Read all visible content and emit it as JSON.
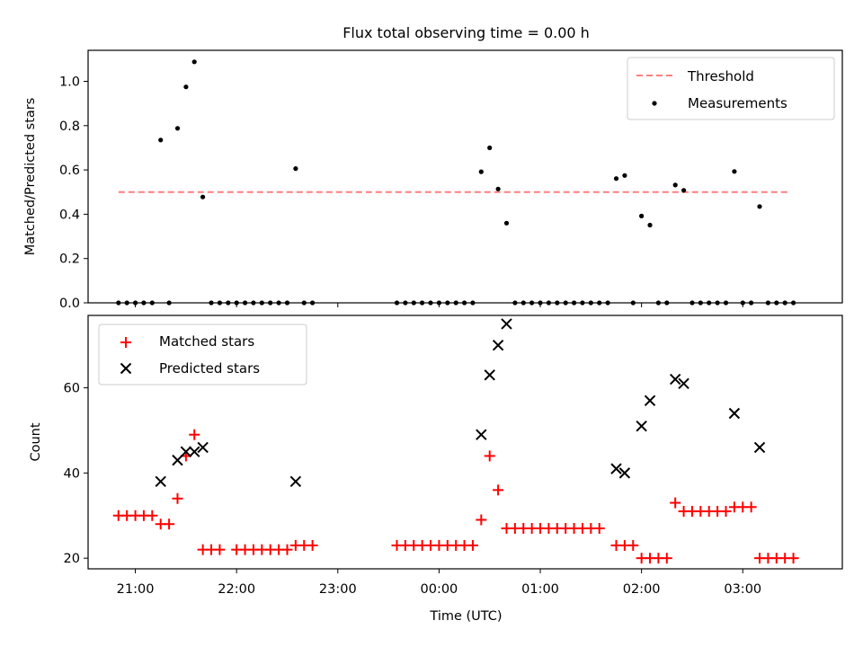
{
  "chart_data": [
    {
      "type": "scatter",
      "title": "Flux total observing time = 0.00 h",
      "ylabel": "Matched/Predicted stars",
      "xlabel": "",
      "ylim": [
        0,
        1.14
      ],
      "yticks": [
        "0.0",
        "0.2",
        "0.4",
        "0.6",
        "0.8",
        "1.0"
      ],
      "legend": {
        "position": "upper right",
        "entries": [
          {
            "label": "Threshold",
            "marker": "dashed-line",
            "color": "#ff7f7f"
          },
          {
            "label": "Measurements",
            "marker": "dot",
            "color": "#000000"
          }
        ]
      },
      "threshold": {
        "y": 0.5,
        "x_start": "20:50",
        "x_end": "03:28",
        "color": "#ff7f7f"
      },
      "series": [
        {
          "name": "Measurements",
          "color": "#000000",
          "points": [
            [
              "20:50",
              0
            ],
            [
              "20:55",
              0
            ],
            [
              "21:00",
              0
            ],
            [
              "21:05",
              0
            ],
            [
              "21:10",
              0
            ],
            [
              "21:15",
              0.735
            ],
            [
              "21:20",
              0
            ],
            [
              "21:25",
              0.788
            ],
            [
              "21:30",
              0.975
            ],
            [
              "21:35",
              1.088
            ],
            [
              "21:40",
              0.478
            ],
            [
              "21:45",
              0
            ],
            [
              "21:50",
              0
            ],
            [
              "21:55",
              0
            ],
            [
              "22:00",
              0
            ],
            [
              "22:05",
              0
            ],
            [
              "22:10",
              0
            ],
            [
              "22:15",
              0
            ],
            [
              "22:20",
              0
            ],
            [
              "22:25",
              0
            ],
            [
              "22:30",
              0
            ],
            [
              "22:35",
              0.606
            ],
            [
              "22:40",
              0
            ],
            [
              "22:45",
              0
            ],
            [
              "23:35",
              0
            ],
            [
              "23:40",
              0
            ],
            [
              "23:45",
              0
            ],
            [
              "23:50",
              0
            ],
            [
              "23:55",
              0
            ],
            [
              "00:00",
              0
            ],
            [
              "00:05",
              0
            ],
            [
              "00:10",
              0
            ],
            [
              "00:15",
              0
            ],
            [
              "00:20",
              0
            ],
            [
              "00:25",
              0.592
            ],
            [
              "00:30",
              0.7
            ],
            [
              "00:35",
              0.514
            ],
            [
              "00:40",
              0.36
            ],
            [
              "00:45",
              0
            ],
            [
              "00:50",
              0
            ],
            [
              "00:55",
              0
            ],
            [
              "01:00",
              0
            ],
            [
              "01:05",
              0
            ],
            [
              "01:10",
              0
            ],
            [
              "01:15",
              0
            ],
            [
              "01:20",
              0
            ],
            [
              "01:25",
              0
            ],
            [
              "01:30",
              0
            ],
            [
              "01:35",
              0
            ],
            [
              "01:40",
              0
            ],
            [
              "01:45",
              0.561
            ],
            [
              "01:50",
              0.575
            ],
            [
              "01:55",
              0
            ],
            [
              "02:00",
              0.392
            ],
            [
              "02:05",
              0.351
            ],
            [
              "02:10",
              0
            ],
            [
              "02:15",
              0
            ],
            [
              "02:20",
              0.532
            ],
            [
              "02:25",
              0.508
            ],
            [
              "02:30",
              0
            ],
            [
              "02:35",
              0
            ],
            [
              "02:40",
              0
            ],
            [
              "02:45",
              0
            ],
            [
              "02:50",
              0
            ],
            [
              "02:55",
              0.593
            ],
            [
              "03:00",
              0
            ],
            [
              "03:05",
              0
            ],
            [
              "03:10",
              0.435
            ],
            [
              "03:15",
              0
            ],
            [
              "03:20",
              0
            ],
            [
              "03:25",
              0
            ],
            [
              "03:30",
              0
            ]
          ]
        }
      ]
    },
    {
      "type": "scatter",
      "title": "",
      "ylabel": "Count",
      "xlabel": "Time (UTC)",
      "ylim": [
        17.5,
        77
      ],
      "yticks": [
        "20",
        "40",
        "60"
      ],
      "xticks": [
        "21:00",
        "22:00",
        "23:00",
        "00:00",
        "01:00",
        "02:00",
        "03:00"
      ],
      "xlim": [
        "20:32",
        "03:59"
      ],
      "legend": {
        "position": "upper left",
        "entries": [
          {
            "label": "Matched stars",
            "marker": "plus",
            "color": "#ff0000"
          },
          {
            "label": "Predicted stars",
            "marker": "x",
            "color": "#000000"
          }
        ]
      },
      "series": [
        {
          "name": "Matched stars",
          "color": "#ff0000",
          "points": [
            [
              "20:50",
              30
            ],
            [
              "20:55",
              30
            ],
            [
              "21:00",
              30
            ],
            [
              "21:05",
              30
            ],
            [
              "21:10",
              30
            ],
            [
              "21:15",
              28
            ],
            [
              "21:20",
              28
            ],
            [
              "21:25",
              34
            ],
            [
              "21:30",
              44
            ],
            [
              "21:35",
              49
            ],
            [
              "21:40",
              22
            ],
            [
              "21:45",
              22
            ],
            [
              "21:50",
              22
            ],
            [
              "22:00",
              22
            ],
            [
              "22:05",
              22
            ],
            [
              "22:10",
              22
            ],
            [
              "22:15",
              22
            ],
            [
              "22:20",
              22
            ],
            [
              "22:25",
              22
            ],
            [
              "22:30",
              22
            ],
            [
              "22:35",
              23
            ],
            [
              "22:40",
              23
            ],
            [
              "22:45",
              23
            ],
            [
              "23:35",
              23
            ],
            [
              "23:40",
              23
            ],
            [
              "23:45",
              23
            ],
            [
              "23:50",
              23
            ],
            [
              "23:55",
              23
            ],
            [
              "00:00",
              23
            ],
            [
              "00:05",
              23
            ],
            [
              "00:10",
              23
            ],
            [
              "00:15",
              23
            ],
            [
              "00:20",
              23
            ],
            [
              "00:25",
              29
            ],
            [
              "00:30",
              44
            ],
            [
              "00:35",
              36
            ],
            [
              "00:40",
              27
            ],
            [
              "00:45",
              27
            ],
            [
              "00:50",
              27
            ],
            [
              "00:55",
              27
            ],
            [
              "01:00",
              27
            ],
            [
              "01:05",
              27
            ],
            [
              "01:10",
              27
            ],
            [
              "01:15",
              27
            ],
            [
              "01:20",
              27
            ],
            [
              "01:25",
              27
            ],
            [
              "01:30",
              27
            ],
            [
              "01:35",
              27
            ],
            [
              "01:45",
              23
            ],
            [
              "01:50",
              23
            ],
            [
              "01:55",
              23
            ],
            [
              "02:00",
              20
            ],
            [
              "02:05",
              20
            ],
            [
              "02:10",
              20
            ],
            [
              "02:15",
              20
            ],
            [
              "02:20",
              33
            ],
            [
              "02:25",
              31
            ],
            [
              "02:30",
              31
            ],
            [
              "02:35",
              31
            ],
            [
              "02:40",
              31
            ],
            [
              "02:45",
              31
            ],
            [
              "02:50",
              31
            ],
            [
              "02:55",
              32
            ],
            [
              "03:00",
              32
            ],
            [
              "03:05",
              32
            ],
            [
              "03:10",
              20
            ],
            [
              "03:15",
              20
            ],
            [
              "03:20",
              20
            ],
            [
              "03:25",
              20
            ],
            [
              "03:30",
              20
            ]
          ]
        },
        {
          "name": "Predicted stars",
          "color": "#000000",
          "points": [
            [
              "21:15",
              38
            ],
            [
              "21:25",
              43
            ],
            [
              "21:30",
              45
            ],
            [
              "21:35",
              45
            ],
            [
              "21:40",
              46
            ],
            [
              "22:35",
              38
            ],
            [
              "00:25",
              49
            ],
            [
              "00:30",
              63
            ],
            [
              "00:35",
              70
            ],
            [
              "00:40",
              75
            ],
            [
              "01:45",
              41
            ],
            [
              "01:50",
              40
            ],
            [
              "02:00",
              51
            ],
            [
              "02:05",
              57
            ],
            [
              "02:20",
              62
            ],
            [
              "02:25",
              61
            ],
            [
              "02:55",
              54
            ],
            [
              "03:10",
              46
            ]
          ]
        }
      ]
    }
  ]
}
